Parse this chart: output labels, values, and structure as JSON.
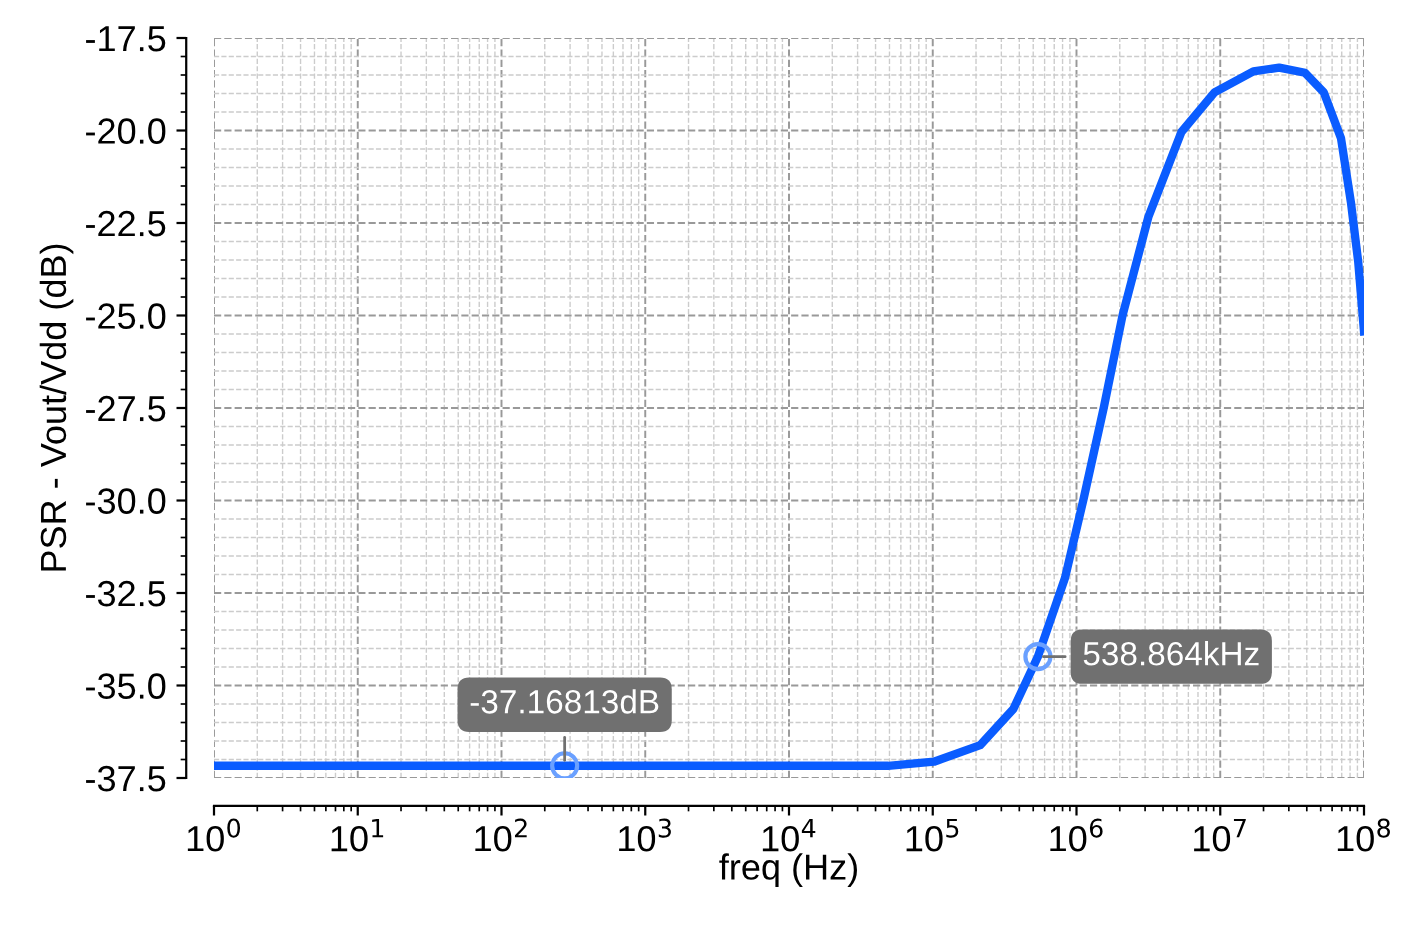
{
  "chart_data": {
    "type": "line",
    "xlabel": "freq (Hz)",
    "ylabel": "PSR - Vout/Vdd (dB)",
    "x": [
      1,
      10,
      100,
      1000,
      10000,
      49000,
      102000,
      214000,
      363000,
      538864,
      832000,
      1120000,
      1550000,
      2090000,
      3160000,
      5370000,
      9120000,
      17000000,
      25700000,
      38900000,
      52500000,
      69200000,
      81300000,
      91200000,
      100000000
    ],
    "series": [
      {
        "color": "#0a5cff",
        "values": [
          -37.17,
          -37.17,
          -37.17,
          -37.17,
          -37.17,
          -37.17,
          -37.06,
          -36.61,
          -35.64,
          -34.22,
          -32.09,
          -29.96,
          -27.48,
          -25.0,
          -22.34,
          -20.04,
          -18.97,
          -18.4,
          -18.3,
          -18.44,
          -18.97,
          -20.21,
          -21.97,
          -23.56,
          -25.43
        ]
      }
    ],
    "log": "x",
    "xlim": [
      1,
      100000000
    ],
    "ylim": [
      -37.5,
      -17.5
    ],
    "xticks": [
      {
        "value": 1,
        "label": "10$^{0}$"
      },
      {
        "value": 10,
        "label": "10$^{1}$"
      },
      {
        "value": 100,
        "label": "10$^{2}$"
      },
      {
        "value": 1000,
        "label": "10$^{3}$"
      },
      {
        "value": 10000,
        "label": "10$^{4}$"
      },
      {
        "value": 100000,
        "label": "10$^{5}$"
      },
      {
        "value": 1000000,
        "label": "10$^{6}$"
      },
      {
        "value": 10000000,
        "label": "10$^{7}$"
      },
      {
        "value": 100000000,
        "label": "10$^{8}$"
      }
    ],
    "yticks": [
      {
        "value": -37.5,
        "label": "-37.5"
      },
      {
        "value": -35,
        "label": "-35.0"
      },
      {
        "value": -32.5,
        "label": "-32.5"
      },
      {
        "value": -30,
        "label": "-30.0"
      },
      {
        "value": -27.5,
        "label": "-27.5"
      },
      {
        "value": -25,
        "label": "-25.0"
      },
      {
        "value": -22.5,
        "label": "-22.5"
      },
      {
        "value": -20,
        "label": "-20.0"
      },
      {
        "value": -17.5,
        "label": "-17.5"
      }
    ],
    "annotations": [
      {
        "text": "-37.16813dB",
        "x": 275,
        "y": -37.17
      },
      {
        "text": "538.864kHz",
        "x": 538864,
        "y": -34.22
      }
    ],
    "grid": true,
    "marker": "none",
    "line_style": "solid",
    "legend": false
  }
}
